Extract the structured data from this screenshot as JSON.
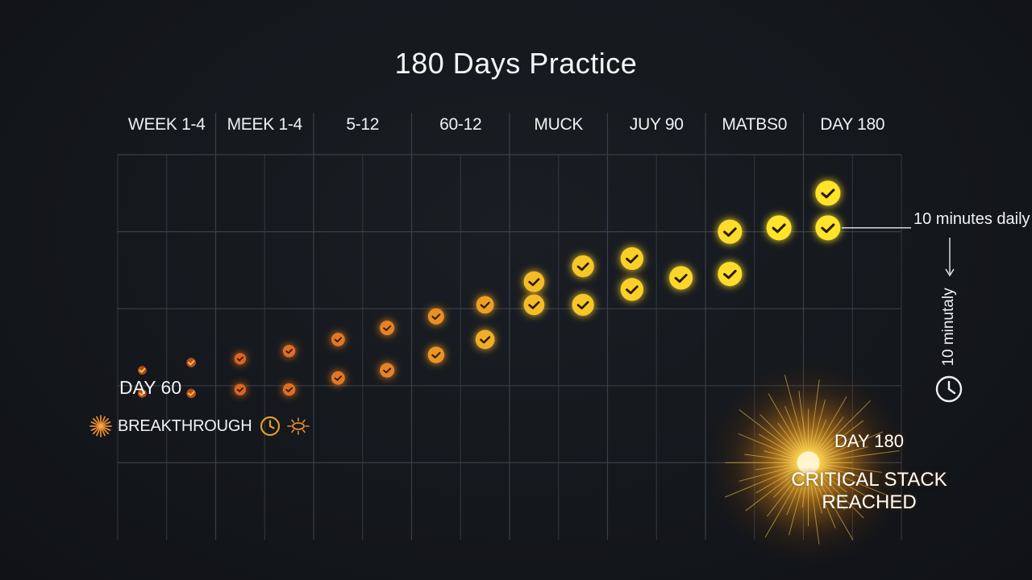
{
  "title": "180 Days Practice",
  "chart_data": {
    "type": "scatter",
    "title": "180 Days Practice",
    "xlabel": "",
    "ylabel": "",
    "grid": true,
    "categories": [
      "WEEK 1-4",
      "MEEK 1-4",
      "5-12",
      "60-12",
      "MUCK",
      "JUY 90",
      "MATBS0",
      "DAY 180"
    ],
    "x_subdivisions": 2,
    "x_range": [
      0,
      16
    ],
    "y_range": [
      0,
      5
    ],
    "points": [
      {
        "x": 0.5,
        "y": 2.2,
        "level": 0.0
      },
      {
        "x": 0.5,
        "y": 1.9,
        "level": 0.0
      },
      {
        "x": 1.5,
        "y": 2.3,
        "level": 0.05
      },
      {
        "x": 1.5,
        "y": 1.9,
        "level": 0.05
      },
      {
        "x": 2.5,
        "y": 2.35,
        "level": 0.12
      },
      {
        "x": 2.5,
        "y": 1.95,
        "level": 0.12
      },
      {
        "x": 3.5,
        "y": 2.45,
        "level": 0.18
      },
      {
        "x": 3.5,
        "y": 1.95,
        "level": 0.18
      },
      {
        "x": 4.5,
        "y": 2.6,
        "level": 0.25
      },
      {
        "x": 4.5,
        "y": 2.1,
        "level": 0.25
      },
      {
        "x": 5.5,
        "y": 2.75,
        "level": 0.32
      },
      {
        "x": 5.5,
        "y": 2.2,
        "level": 0.32
      },
      {
        "x": 6.5,
        "y": 2.9,
        "level": 0.42
      },
      {
        "x": 6.5,
        "y": 2.4,
        "level": 0.45
      },
      {
        "x": 7.5,
        "y": 3.05,
        "level": 0.52
      },
      {
        "x": 7.5,
        "y": 2.6,
        "level": 0.62
      },
      {
        "x": 8.5,
        "y": 3.35,
        "level": 0.72
      },
      {
        "x": 8.5,
        "y": 3.05,
        "level": 0.72
      },
      {
        "x": 9.5,
        "y": 3.55,
        "level": 0.8
      },
      {
        "x": 9.5,
        "y": 3.05,
        "level": 0.8
      },
      {
        "x": 10.5,
        "y": 3.65,
        "level": 0.86
      },
      {
        "x": 10.5,
        "y": 3.25,
        "level": 0.86
      },
      {
        "x": 11.5,
        "y": 3.4,
        "level": 0.9
      },
      {
        "x": 12.5,
        "y": 4.0,
        "level": 0.95
      },
      {
        "x": 12.5,
        "y": 3.45,
        "level": 0.95
      },
      {
        "x": 13.5,
        "y": 4.05,
        "level": 1.0
      },
      {
        "x": 14.5,
        "y": 4.05,
        "level": 1.0
      },
      {
        "x": 14.5,
        "y": 4.5,
        "level": 1.0
      }
    ],
    "colors": {
      "start": "#d9541e",
      "end": "#ffe42a"
    }
  },
  "annotations": {
    "day60": "DAY 60",
    "breakthrough": "BREAKTHROUGH",
    "right_label": "10 minutes daily",
    "vertical_label": "10 minutaly",
    "burst_day": "DAY 180",
    "burst_message": "CRITICAL STACK REACHED"
  },
  "icons": {
    "spark": "spark-icon",
    "clock": "clock-icon",
    "sun": "sun-icon"
  }
}
